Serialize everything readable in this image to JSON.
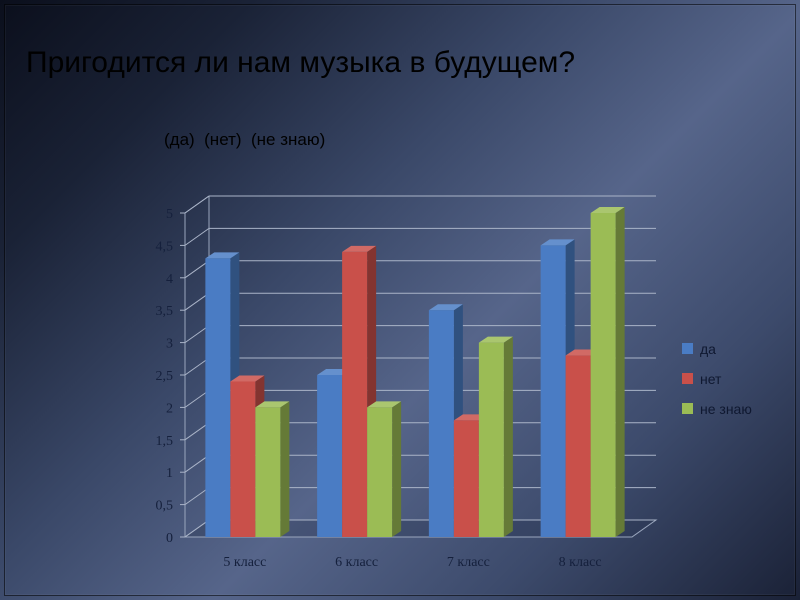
{
  "slide": {
    "title": "Пригодится ли нам музыка в будущем?",
    "subtitle": "(да)  (нет)  (не знаю)"
  },
  "chart_data": {
    "type": "bar",
    "categories": [
      "5 класс",
      "6 класс",
      "7 класс",
      "8 класс"
    ],
    "series": [
      {
        "name": "да",
        "values": [
          4.3,
          2.5,
          3.5,
          4.5
        ],
        "color": "#4a7cc4"
      },
      {
        "name": "нет",
        "values": [
          2.4,
          4.4,
          1.8,
          2.8
        ],
        "color": "#c9504a"
      },
      {
        "name": "не знаю",
        "values": [
          2.0,
          2.0,
          3.0,
          5.0
        ],
        "color": "#9bbc55"
      }
    ],
    "y_ticks": [
      "0",
      "0,5",
      "1",
      "1,5",
      "2",
      "2,5",
      "3",
      "3,5",
      "4",
      "4,5",
      "5"
    ],
    "ylim": [
      0,
      5
    ],
    "grid": true,
    "legend_position": "right",
    "style": "3d-columns"
  }
}
